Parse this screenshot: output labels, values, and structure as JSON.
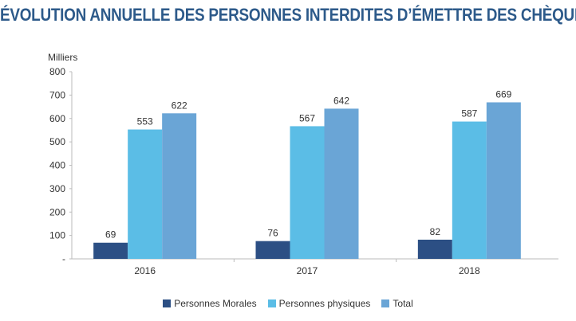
{
  "chart_data": {
    "type": "bar",
    "title": "ÉVOLUTION ANNUELLE DES PERSONNES INTERDITES D’ÉMETTRE DES CHÈQUES",
    "ylabel": "Milliers",
    "xlabel": "",
    "categories": [
      "2016",
      "2017",
      "2018"
    ],
    "ylim": [
      0,
      800
    ],
    "yticks": [
      0,
      100,
      200,
      300,
      400,
      500,
      600,
      700,
      800
    ],
    "ytick_labels": [
      "-",
      "100",
      "200",
      "300",
      "400",
      "500",
      "600",
      "700",
      "800"
    ],
    "grid": false,
    "legend_position": "bottom",
    "series": [
      {
        "name": "Personnes Morales",
        "values": [
          69,
          76,
          82
        ],
        "color": "#2c4f84"
      },
      {
        "name": "Personnes physiques",
        "values": [
          553,
          567,
          587
        ],
        "color": "#5bbde6"
      },
      {
        "name": "Total",
        "values": [
          622,
          642,
          669
        ],
        "color": "#6aa5d6"
      }
    ]
  }
}
